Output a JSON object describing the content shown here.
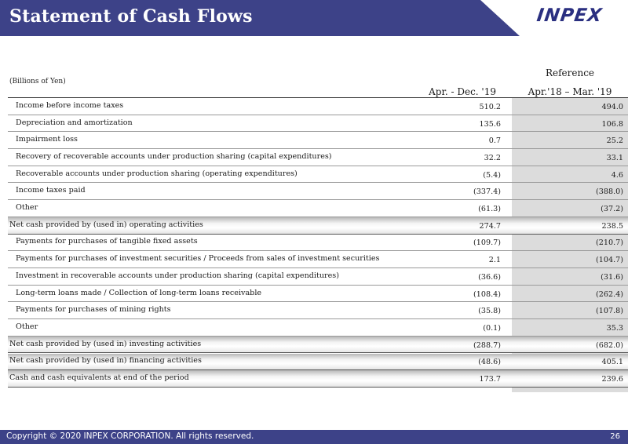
{
  "header": {
    "title": "Statement of Cash Flows",
    "logo_text": "INPEX"
  },
  "table": {
    "units": "(Billions of Yen)",
    "reference_label": "Reference",
    "col1_header": "Apr. - Dec. '19",
    "col2_header": "Apr.'18 – Mar. '19",
    "rows": [
      {
        "label": "Income before income taxes",
        "v1": "510.2",
        "v2": "494.0"
      },
      {
        "label": "Depreciation and amortization",
        "v1": "135.6",
        "v2": "106.8"
      },
      {
        "label": "Impairment loss",
        "v1": "0.7",
        "v2": "25.2"
      },
      {
        "label": "Recovery of recoverable accounts under production sharing (capital expenditures)",
        "v1": "32.2",
        "v2": "33.1"
      },
      {
        "label": "Recoverable accounts under production sharing (operating expenditures)",
        "v1": "(5.4)",
        "v2": "4.6"
      },
      {
        "label": "Income taxes paid",
        "v1": "(337.4)",
        "v2": "(388.0)"
      },
      {
        "label": "Other",
        "v1": "(61.3)",
        "v2": "(37.2)"
      },
      {
        "label": "Net cash provided by (used in) operating activities",
        "v1": "274.7",
        "v2": "238.5",
        "total": true
      },
      {
        "label": "Payments for purchases of tangible fixed assets",
        "v1": "(109.7)",
        "v2": "(210.7)"
      },
      {
        "label": "Payments for purchases of investment securities / Proceeds from sales of investment securities",
        "v1": "2.1",
        "v2": "(104.7)"
      },
      {
        "label": "Investment in recoverable accounts under production sharing (capital expenditures)",
        "v1": "(36.6)",
        "v2": "(31.6)"
      },
      {
        "label": "Long-term loans made / Collection of long-term loans receivable",
        "v1": "(108.4)",
        "v2": "(262.4)"
      },
      {
        "label": "Payments for purchases of mining rights",
        "v1": "(35.8)",
        "v2": "(107.8)"
      },
      {
        "label": "Other",
        "v1": "(0.1)",
        "v2": "35.3"
      },
      {
        "label": "Net cash provided by (used in) investing activities",
        "v1": "(288.7)",
        "v2": "(682.0)",
        "total": true
      },
      {
        "label": "Net cash provided by (used in) financing activities",
        "v1": "(48.6)",
        "v2": "405.1",
        "total": true
      },
      {
        "label": "Cash and cash equivalents at end of the period",
        "v1": "173.7",
        "v2": "239.6",
        "total": true
      }
    ]
  },
  "footer": {
    "copyright": "Copyright © 2020 INPEX CORPORATION. All rights reserved.",
    "page_number": "26"
  }
}
